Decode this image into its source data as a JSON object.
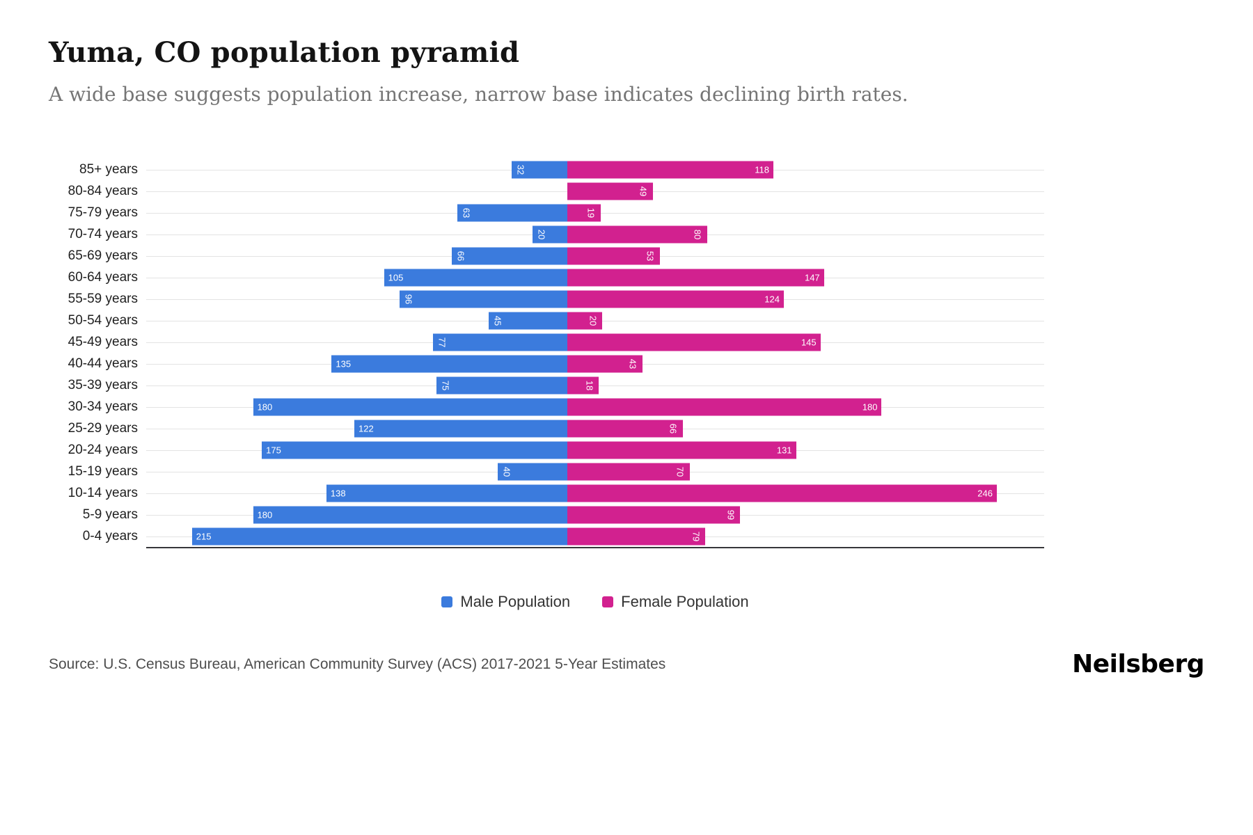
{
  "title": "Yuma, CO population pyramid",
  "subtitle": "A wide base suggests population increase, narrow base indicates declining birth rates.",
  "source": "Source: U.S. Census Bureau, American Community Survey (ACS) 2017-2021 5-Year Estimates",
  "logo": "Neilsberg",
  "colors": {
    "male": "#3b7bdd",
    "female": "#d2218f",
    "gridline": "#e3e3e3",
    "axis": "#37373a"
  },
  "legend": [
    {
      "label": "Male Population",
      "color": "#3b7bdd"
    },
    {
      "label": "Female Population",
      "color": "#d2218f"
    }
  ],
  "chart_data": {
    "type": "bar",
    "variant": "population-pyramid",
    "title": "Yuma, CO population pyramid",
    "subtitle": "A wide base suggests population increase, narrow base indicates declining birth rates.",
    "categories": [
      "85+ years",
      "80-84 years",
      "75-79 years",
      "70-74 years",
      "65-69 years",
      "60-64 years",
      "55-59 years",
      "50-54 years",
      "45-49 years",
      "40-44 years",
      "35-39 years",
      "30-34 years",
      "25-29 years",
      "20-24 years",
      "15-19 years",
      "10-14 years",
      "5-9 years",
      "0-4 years"
    ],
    "series": [
      {
        "name": "Male Population",
        "color": "#3b7bdd",
        "values": [
          32,
          0,
          63,
          20,
          66,
          105,
          96,
          45,
          77,
          135,
          75,
          180,
          122,
          175,
          40,
          138,
          180,
          215
        ]
      },
      {
        "name": "Female Population",
        "color": "#d2218f",
        "values": [
          118,
          49,
          19,
          80,
          53,
          147,
          124,
          20,
          145,
          43,
          18,
          180,
          66,
          131,
          70,
          246,
          99,
          79
        ]
      }
    ],
    "value_axis_max": 246,
    "grid": true,
    "legend_position": "bottom",
    "data_labels": "inside-bar-end, rotated 90deg when value < 100"
  }
}
